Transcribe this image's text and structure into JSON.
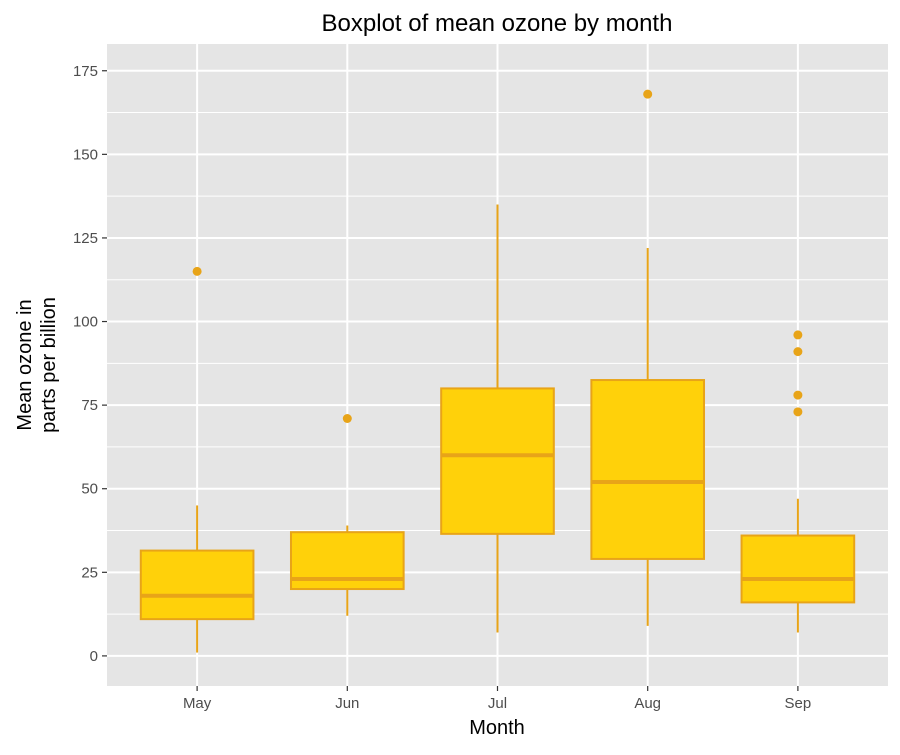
{
  "chart_data": {
    "type": "boxplot",
    "title": "Boxplot of mean ozone by month",
    "xlabel": "Month",
    "ylabel_lines": [
      "Mean ozone in",
      "parts per billion"
    ],
    "categories": [
      "May",
      "Jun",
      "Jul",
      "Aug",
      "Sep"
    ],
    "ylim": [
      -9,
      183
    ],
    "yticks": [
      0,
      25,
      50,
      75,
      100,
      125,
      150,
      175
    ],
    "grid": true,
    "legend": "none",
    "colors": {
      "panel": "#e5e5e5",
      "grid": "#ffffff",
      "box_fill": "#ffd10a",
      "box_line": "#e8a418",
      "tick": "#333333"
    },
    "boxes": [
      {
        "month": "May",
        "whisker_low": 1,
        "q1": 11,
        "median": 18,
        "q3": 31.5,
        "whisker_high": 45,
        "outliers": [
          115
        ]
      },
      {
        "month": "Jun",
        "whisker_low": 12,
        "q1": 20,
        "median": 23,
        "q3": 37,
        "whisker_high": 39,
        "outliers": [
          71
        ]
      },
      {
        "month": "Jul",
        "whisker_low": 7,
        "q1": 36.5,
        "median": 60,
        "q3": 80,
        "whisker_high": 135,
        "outliers": []
      },
      {
        "month": "Aug",
        "whisker_low": 9,
        "q1": 29,
        "median": 52,
        "q3": 82.5,
        "whisker_high": 122,
        "outliers": [
          168
        ]
      },
      {
        "month": "Sep",
        "whisker_low": 7,
        "q1": 16,
        "median": 23,
        "q3": 36,
        "whisker_high": 47,
        "outliers": [
          73,
          78,
          91,
          96
        ]
      }
    ]
  }
}
